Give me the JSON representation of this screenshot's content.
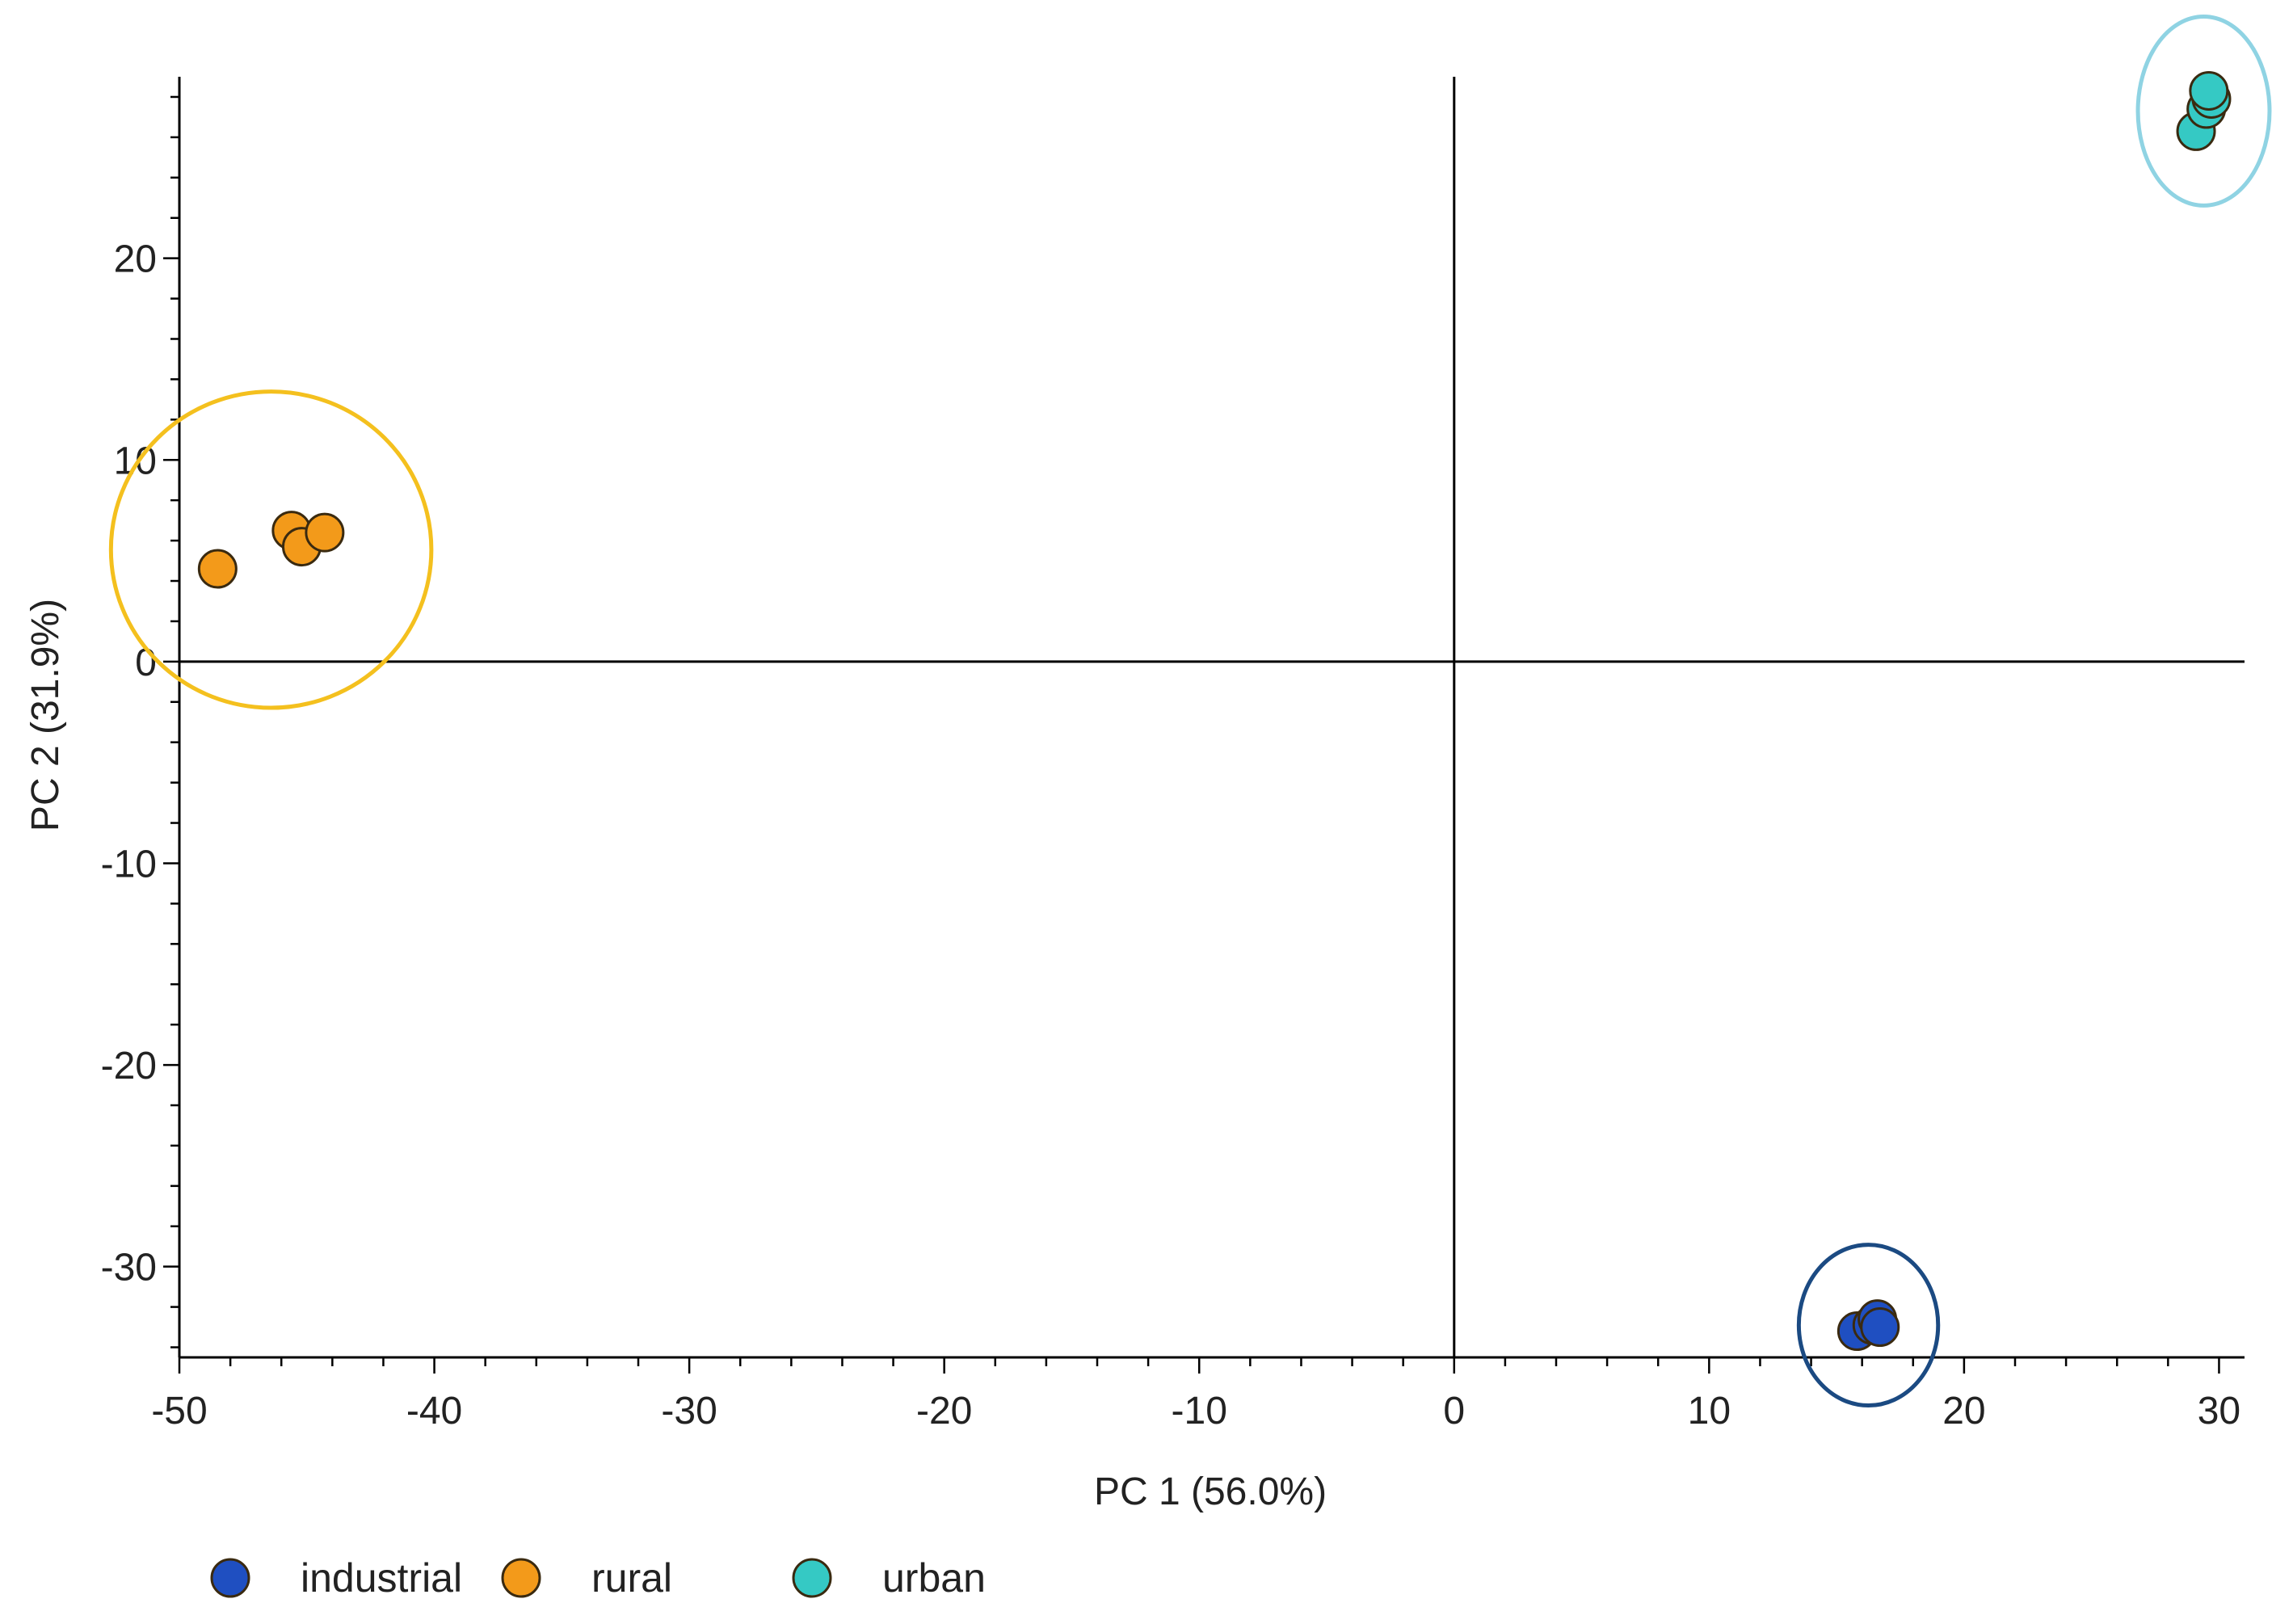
{
  "chart_data": {
    "type": "scatter",
    "xlabel": "PC 1 (56.0%)",
    "ylabel": "PC 2 (31.9%)",
    "xlim": [
      -50,
      31
    ],
    "ylim": [
      -34.5,
      29
    ],
    "x_ticks": [
      -50,
      -40,
      -30,
      -20,
      -10,
      0,
      10,
      20,
      30
    ],
    "y_ticks": [
      20,
      10,
      0,
      -10,
      -20,
      -30
    ],
    "grid": false,
    "legend_position": "bottom",
    "series": [
      {
        "name": "industrial",
        "color": "#1f4fc1",
        "points": [
          {
            "x": 15.8,
            "y": -33.2
          },
          {
            "x": 16.4,
            "y": -32.9
          },
          {
            "x": 16.6,
            "y": -32.6
          },
          {
            "x": 16.7,
            "y": -33.0
          }
        ],
        "cluster_ring_color": "#1b4a82"
      },
      {
        "name": "rural",
        "color": "#f39a1a",
        "points": [
          {
            "x": -48.5,
            "y": 4.6
          },
          {
            "x": -45.6,
            "y": 6.5
          },
          {
            "x": -45.2,
            "y": 5.7
          },
          {
            "x": -44.3,
            "y": 6.4
          }
        ],
        "cluster_ring_color": "#f4c01e"
      },
      {
        "name": "urban",
        "color": "#35c9c4",
        "points": [
          {
            "x": 29.1,
            "y": 26.3
          },
          {
            "x": 29.5,
            "y": 27.4
          },
          {
            "x": 29.7,
            "y": 27.9
          },
          {
            "x": 29.6,
            "y": 28.3
          }
        ],
        "cluster_ring_color": "#8fd3e3"
      }
    ]
  }
}
